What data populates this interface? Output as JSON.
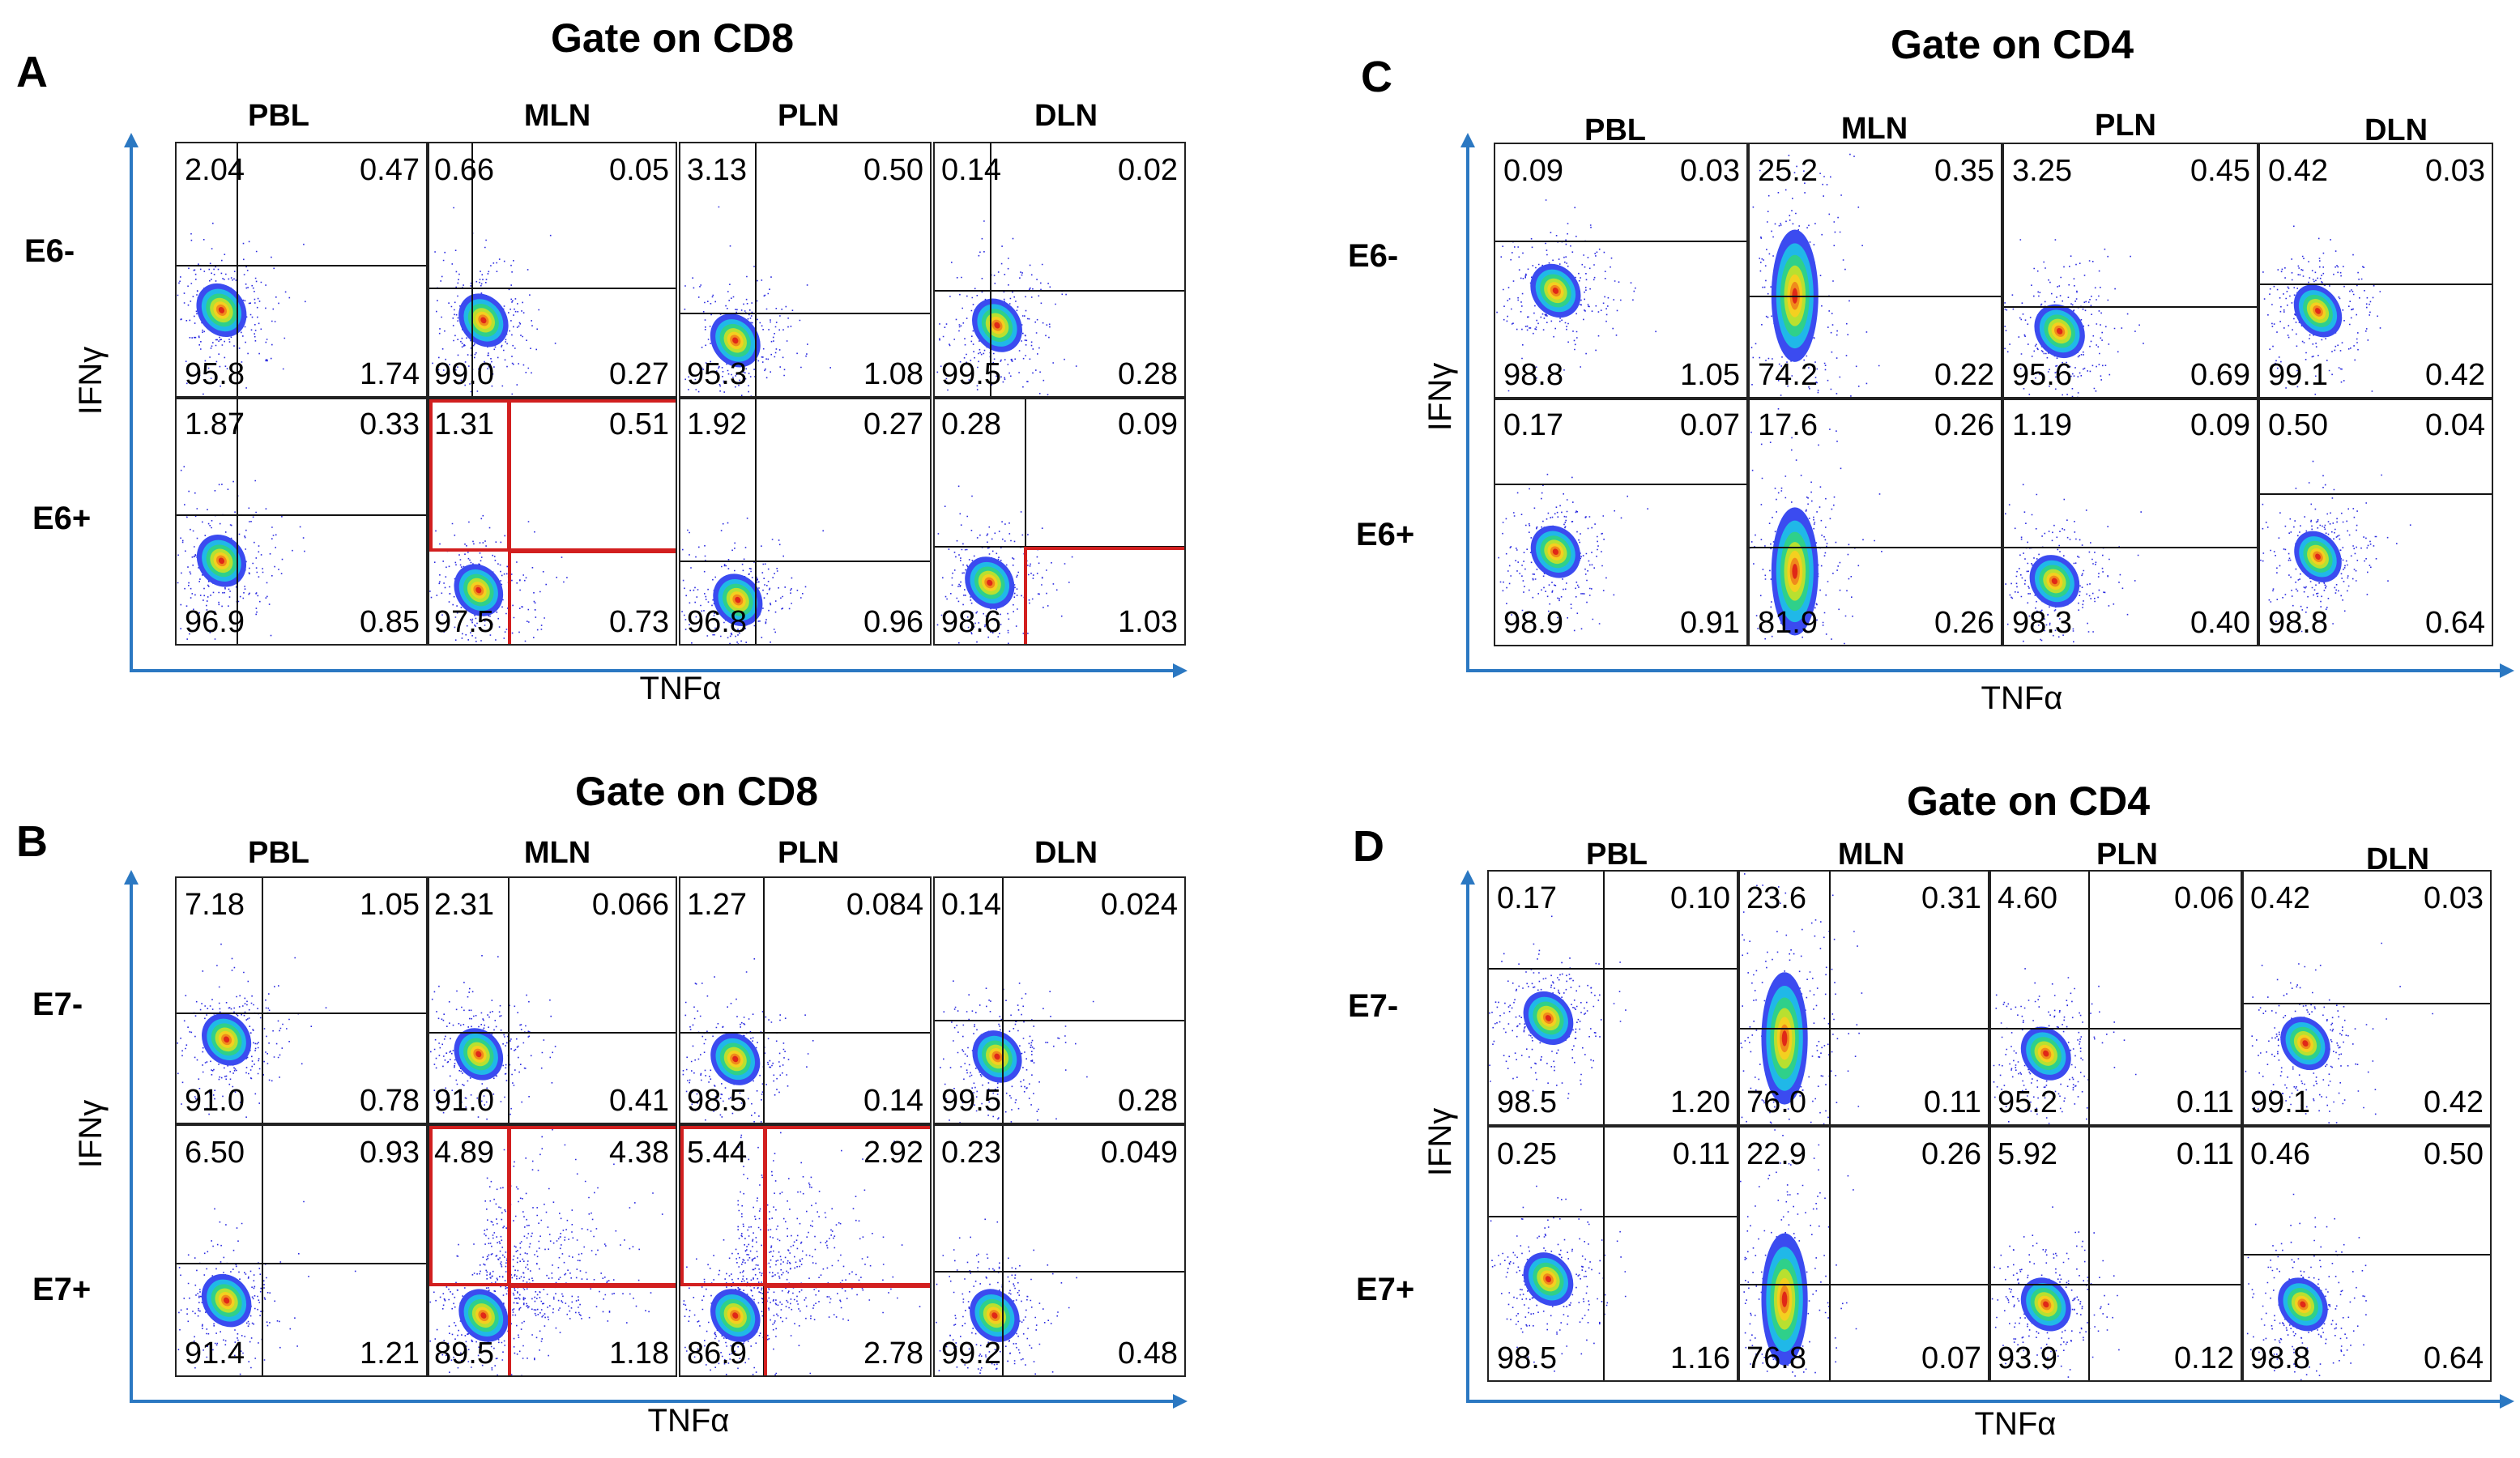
{
  "x_axis_label": "TNFα",
  "y_axis_label": "IFNγ",
  "columns": [
    "PBL",
    "MLN",
    "PLN",
    "DLN"
  ],
  "colors": {
    "axis": "#2b78c2",
    "highlight": "#d21f1f",
    "quadrant_line": "#111111"
  },
  "panels": [
    {
      "label": "A",
      "title": "Gate on CD8",
      "rows": [
        {
          "label": "E6-",
          "plots": [
            {
              "UL": "2.04",
              "UR": "0.47",
              "LL": "95.8",
              "LR": "1.74"
            },
            {
              "UL": "0.66",
              "UR": "0.05",
              "LL": "99.0",
              "LR": "0.27"
            },
            {
              "UL": "3.13",
              "UR": "0.50",
              "LL": "95.3",
              "LR": "1.08"
            },
            {
              "UL": "0.14",
              "UR": "0.02",
              "LL": "99.5",
              "LR": "0.28"
            }
          ]
        },
        {
          "label": "E6+",
          "plots": [
            {
              "UL": "1.87",
              "UR": "0.33",
              "LL": "96.9",
              "LR": "0.85"
            },
            {
              "UL": "1.31",
              "UR": "0.51",
              "LL": "97.5",
              "LR": "0.73"
            },
            {
              "UL": "1.92",
              "UR": "0.27",
              "LL": "96.8",
              "LR": "0.96"
            },
            {
              "UL": "0.28",
              "UR": "0.09",
              "LL": "98.6",
              "LR": "1.03"
            }
          ]
        }
      ]
    },
    {
      "label": "B",
      "title": "Gate on CD8",
      "rows": [
        {
          "label": "E7-",
          "plots": [
            {
              "UL": "7.18",
              "UR": "1.05",
              "LL": "91.0",
              "LR": "0.78"
            },
            {
              "UL": "2.31",
              "UR": "0.066",
              "LL": "91.0",
              "LR": "0.41"
            },
            {
              "UL": "1.27",
              "UR": "0.084",
              "LL": "98.5",
              "LR": "0.14"
            },
            {
              "UL": "0.14",
              "UR": "0.024",
              "LL": "99.5",
              "LR": "0.28"
            }
          ]
        },
        {
          "label": "E7+",
          "plots": [
            {
              "UL": "6.50",
              "UR": "0.93",
              "LL": "91.4",
              "LR": "1.21"
            },
            {
              "UL": "4.89",
              "UR": "4.38",
              "LL": "89.5",
              "LR": "1.18"
            },
            {
              "UL": "5.44",
              "UR": "2.92",
              "LL": "86.9",
              "LR": "2.78"
            },
            {
              "UL": "0.23",
              "UR": "0.049",
              "LL": "99.2",
              "LR": "0.48"
            }
          ]
        }
      ]
    },
    {
      "label": "C",
      "title": "Gate on CD4",
      "rows": [
        {
          "label": "E6-",
          "plots": [
            {
              "UL": "0.09",
              "UR": "0.03",
              "LL": "98.8",
              "LR": "1.05"
            },
            {
              "UL": "25.2",
              "UR": "0.35",
              "LL": "74.2",
              "LR": "0.22"
            },
            {
              "UL": "3.25",
              "UR": "0.45",
              "LL": "95.6",
              "LR": "0.69"
            },
            {
              "UL": "0.42",
              "UR": "0.03",
              "LL": "99.1",
              "LR": "0.42"
            }
          ]
        },
        {
          "label": "E6+",
          "plots": [
            {
              "UL": "0.17",
              "UR": "0.07",
              "LL": "98.9",
              "LR": "0.91"
            },
            {
              "UL": "17.6",
              "UR": "0.26",
              "LL": "81.9",
              "LR": "0.26"
            },
            {
              "UL": "1.19",
              "UR": "0.09",
              "LL": "98.3",
              "LR": "0.40"
            },
            {
              "UL": "0.50",
              "UR": "0.04",
              "LL": "98.8",
              "LR": "0.64"
            }
          ]
        }
      ]
    },
    {
      "label": "D",
      "title": "Gate on CD4",
      "rows": [
        {
          "label": "E7-",
          "plots": [
            {
              "UL": "0.17",
              "UR": "0.10",
              "LL": "98.5",
              "LR": "1.20"
            },
            {
              "UL": "23.6",
              "UR": "0.31",
              "LL": "76.0",
              "LR": "0.11"
            },
            {
              "UL": "4.60",
              "UR": "0.06",
              "LL": "95.2",
              "LR": "0.11"
            },
            {
              "UL": "0.42",
              "UR": "0.03",
              "LL": "99.1",
              "LR": "0.42"
            }
          ]
        },
        {
          "label": "E7+",
          "plots": [
            {
              "UL": "0.25",
              "UR": "0.11",
              "LL": "98.5",
              "LR": "1.16"
            },
            {
              "UL": "22.9",
              "UR": "0.26",
              "LL": "76.8",
              "LR": "0.07"
            },
            {
              "UL": "5.92",
              "UR": "0.11",
              "LL": "93.9",
              "LR": "0.12"
            },
            {
              "UL": "0.46",
              "UR": "0.50",
              "LL": "98.8",
              "LR": "0.64"
            }
          ]
        }
      ]
    }
  ]
}
